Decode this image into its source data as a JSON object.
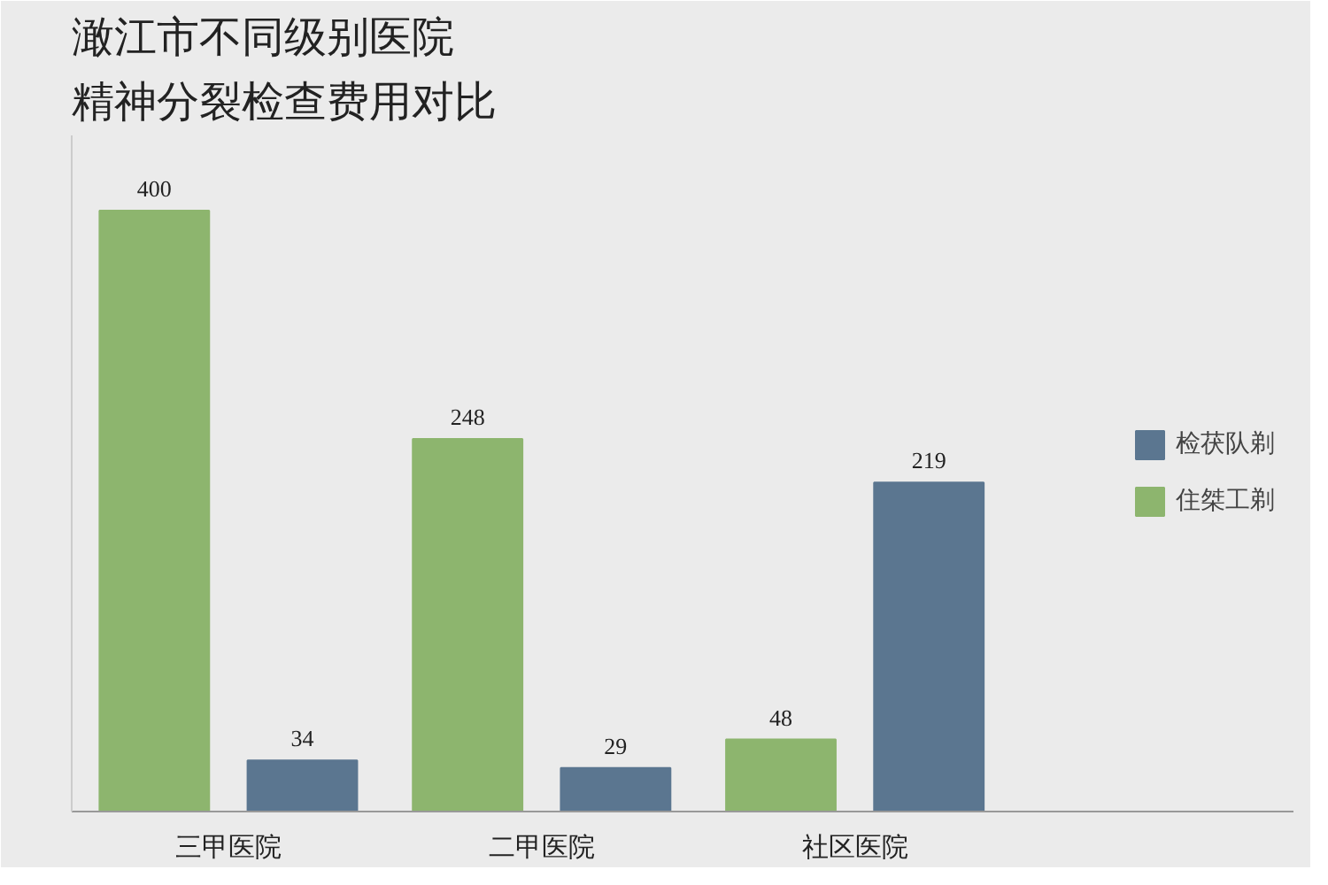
{
  "chart_data": {
    "type": "bar",
    "title": "澉江市不同级别医院精神分裂检查费用对比",
    "categories": [
      "三甲医院",
      "二甲医院",
      "社区医院"
    ],
    "series": [
      {
        "name": "住桀工剃",
        "color": "#8db56e",
        "values": [
          400,
          248,
          48
        ]
      },
      {
        "name": "检茯队剃",
        "color": "#5b7690",
        "values": [
          34,
          29,
          219
        ]
      }
    ],
    "ylim": [
      0,
      450
    ],
    "tick_labels": "x",
    "data_labels": true,
    "legend": "right"
  }
}
